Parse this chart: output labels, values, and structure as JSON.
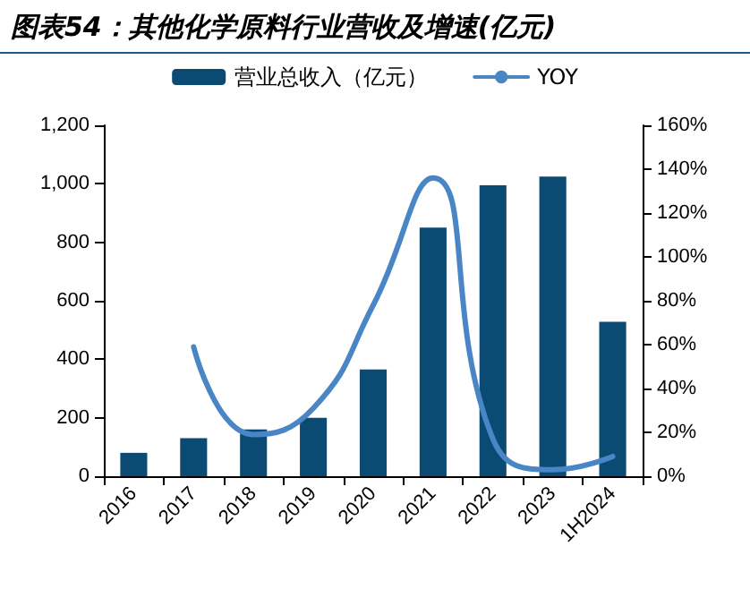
{
  "chart_data": {
    "type": "bar",
    "title": "图表54：其他化学原料行业营收及增速(亿元)",
    "categories": [
      "2016",
      "2017",
      "2018",
      "2019",
      "2020",
      "2021",
      "2022",
      "2023",
      "1H2024"
    ],
    "series": [
      {
        "name": "营业总收入（亿元）",
        "color": "#0b4a72",
        "values": [
          80,
          130,
          160,
          200,
          365,
          850,
          995,
          1025,
          528
        ]
      },
      {
        "name": "YOY",
        "type": "line",
        "axis": "y2",
        "color": "#4a86c5",
        "marker": "none",
        "values": [
          null,
          59,
          19,
          31,
          78,
          136,
          17,
          3,
          9
        ]
      }
    ],
    "ylim": [
      0,
      1200
    ],
    "yticks": [
      {
        "value": 0,
        "label": "0"
      },
      {
        "value": 200,
        "label": "200"
      },
      {
        "value": 400,
        "label": "400"
      },
      {
        "value": 600,
        "label": "600"
      },
      {
        "value": 800,
        "label": "800"
      },
      {
        "value": 1000,
        "label": "1,000"
      },
      {
        "value": 1200,
        "label": "1,200"
      }
    ],
    "y2lim": [
      0,
      160
    ],
    "y2ticks": [
      {
        "value": 0,
        "label": "0%"
      },
      {
        "value": 20,
        "label": "20%"
      },
      {
        "value": 40,
        "label": "40%"
      },
      {
        "value": 60,
        "label": "60%"
      },
      {
        "value": 80,
        "label": "80%"
      },
      {
        "value": 100,
        "label": "100%"
      },
      {
        "value": 120,
        "label": "120%"
      },
      {
        "value": 140,
        "label": "140%"
      },
      {
        "value": 160,
        "label": "160%"
      }
    ],
    "grid": false,
    "legend": "top"
  }
}
